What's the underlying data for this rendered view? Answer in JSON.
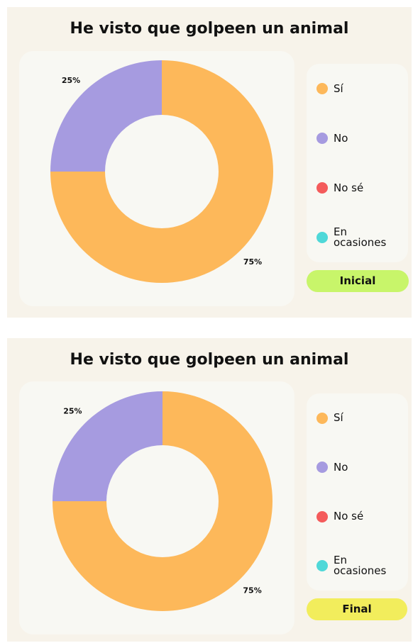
{
  "chart_data": [
    {
      "type": "pie",
      "donut": true,
      "title": "He visto que golpeen un animal",
      "categories": [
        "Sí",
        "No",
        "No sé",
        "En ocasiones"
      ],
      "values": [
        75,
        25,
        0,
        0
      ],
      "value_labels": [
        "75%",
        "25%",
        null,
        null
      ],
      "colors": [
        "#fdb85a",
        "#a69be0",
        "#f45b5b",
        "#4fd8d8"
      ],
      "badge": "Inicial",
      "badge_color": "#c8f56a"
    },
    {
      "type": "pie",
      "donut": true,
      "title": "He visto que golpeen un animal",
      "categories": [
        "Sí",
        "No",
        "No sé",
        "En ocasiones"
      ],
      "values": [
        75,
        25,
        0,
        0
      ],
      "value_labels": [
        "75%",
        "25%",
        null,
        null
      ],
      "colors": [
        "#fdb85a",
        "#a69be0",
        "#f45b5b",
        "#4fd8d8"
      ],
      "badge": "Final",
      "badge_color": "#f2ed5c"
    }
  ]
}
